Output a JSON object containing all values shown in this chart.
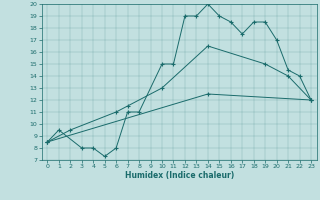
{
  "xlabel": "Humidex (Indice chaleur)",
  "xlim": [
    -0.5,
    23.5
  ],
  "ylim": [
    7,
    20
  ],
  "xticks": [
    0,
    1,
    2,
    3,
    4,
    5,
    6,
    7,
    8,
    9,
    10,
    11,
    12,
    13,
    14,
    15,
    16,
    17,
    18,
    19,
    20,
    21,
    22,
    23
  ],
  "yticks": [
    7,
    8,
    9,
    10,
    11,
    12,
    13,
    14,
    15,
    16,
    17,
    18,
    19,
    20
  ],
  "bg_color": "#c2e0e0",
  "line_color": "#1a6b6b",
  "line1_x": [
    0,
    1,
    3,
    4,
    5,
    6,
    7,
    8,
    10,
    11,
    12,
    13,
    14,
    15,
    16,
    17,
    18,
    19,
    20,
    21,
    22,
    23
  ],
  "line1_y": [
    8.5,
    9.5,
    8.0,
    8.0,
    7.3,
    8.0,
    11.0,
    11.0,
    15.0,
    15.0,
    19.0,
    19.0,
    20.0,
    19.0,
    18.5,
    17.5,
    18.5,
    18.5,
    17.0,
    14.5,
    14.0,
    12.0
  ],
  "line2_x": [
    0,
    2,
    6,
    7,
    10,
    14,
    19,
    21,
    23
  ],
  "line2_y": [
    8.5,
    9.5,
    11.0,
    11.5,
    13.0,
    16.5,
    15.0,
    14.0,
    12.0
  ],
  "line3_x": [
    0,
    14,
    23
  ],
  "line3_y": [
    8.5,
    12.5,
    12.0
  ]
}
